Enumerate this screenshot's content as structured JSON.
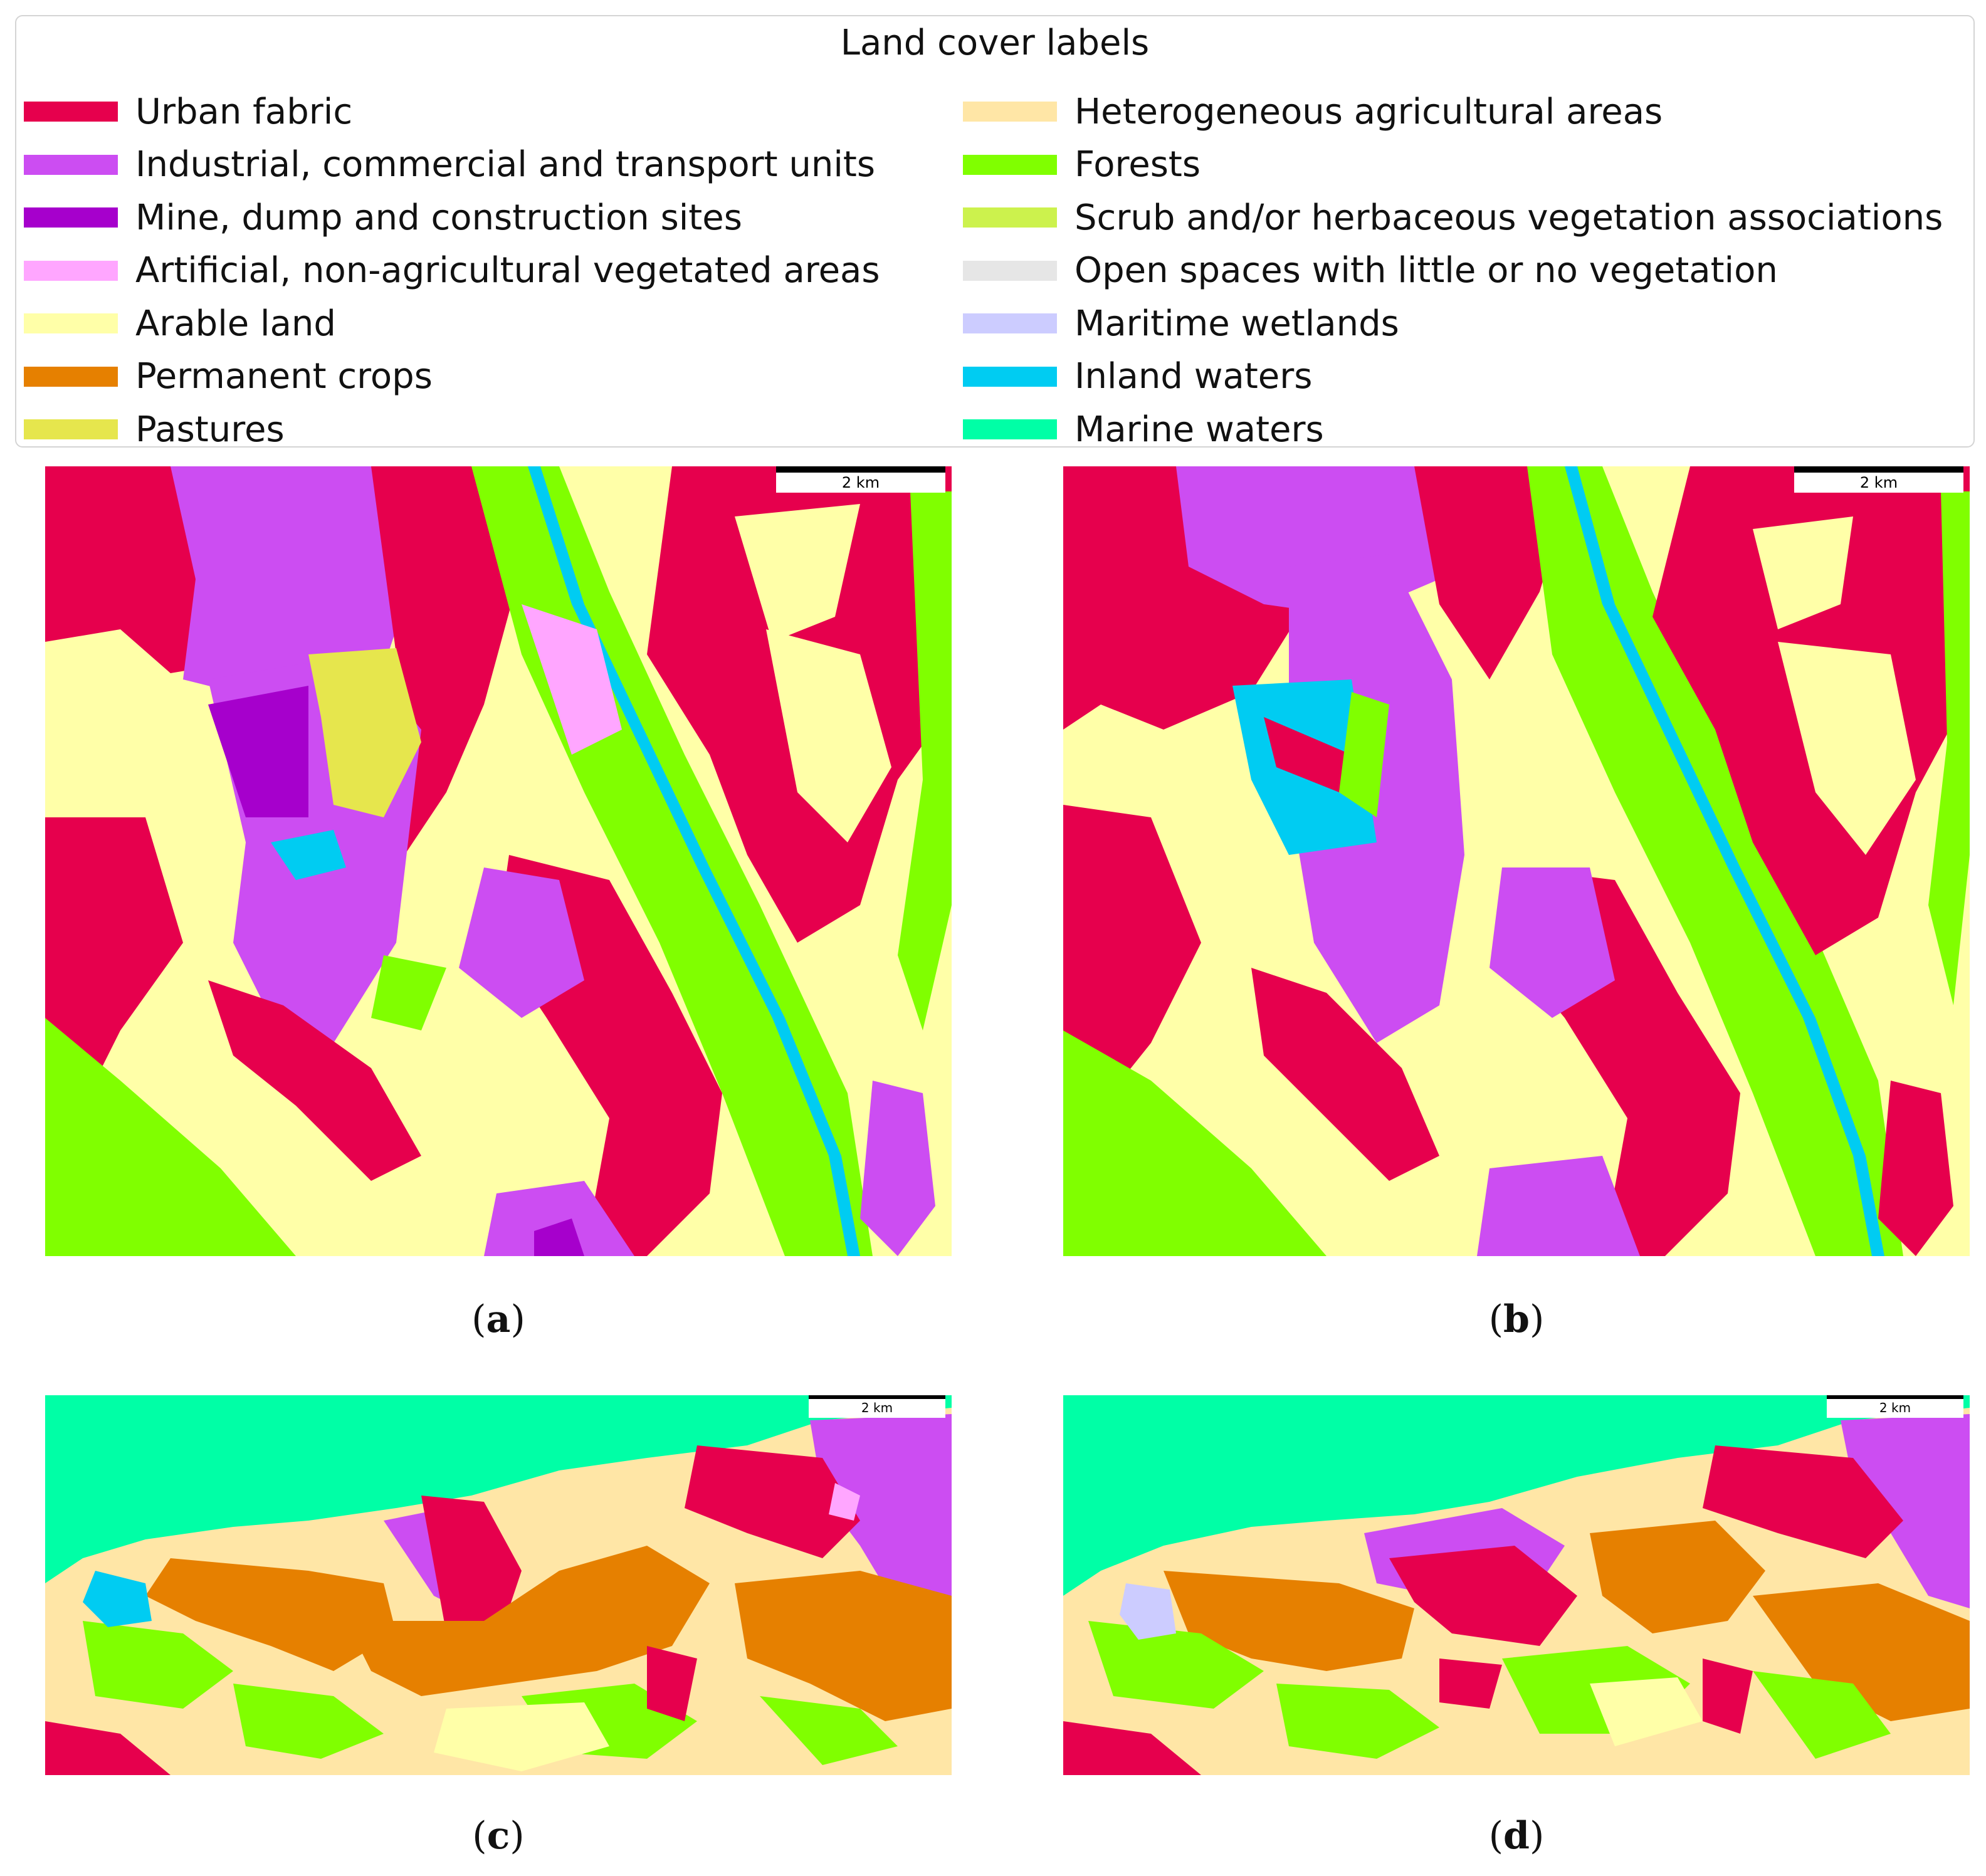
{
  "legend": {
    "title": "Land cover labels",
    "items": [
      {
        "label": "Urban fabric",
        "color": "#e6004d"
      },
      {
        "label": "Industrial, commercial and transport units",
        "color": "#cc4df2"
      },
      {
        "label": "Mine, dump and construction sites",
        "color": "#a600cc"
      },
      {
        "label": "Artificial, non-agricultural vegetated areas",
        "color": "#ffa6ff"
      },
      {
        "label": "Arable land",
        "color": "#ffffa8"
      },
      {
        "label": "Permanent crops",
        "color": "#e68000"
      },
      {
        "label": "Pastures",
        "color": "#e6e64d"
      },
      {
        "label": "Heterogeneous agricultural areas",
        "color": "#ffe6a6"
      },
      {
        "label": "Forests",
        "color": "#80ff00"
      },
      {
        "label": "Scrub and/or herbaceous vegetation associations",
        "color": "#ccf24d"
      },
      {
        "label": "Open spaces with little or no vegetation",
        "color": "#e6e6e6"
      },
      {
        "label": "Maritime wetlands",
        "color": "#ccccff"
      },
      {
        "label": "Inland waters",
        "color": "#00ccf2"
      },
      {
        "label": "Marine waters",
        "color": "#00ffa6"
      }
    ]
  },
  "panels": [
    {
      "caption": "a",
      "scale_label": "2 km"
    },
    {
      "caption": "b",
      "scale_label": "2 km"
    },
    {
      "caption": "c",
      "scale_label": "2 km"
    },
    {
      "caption": "d",
      "scale_label": "2 km"
    }
  ]
}
